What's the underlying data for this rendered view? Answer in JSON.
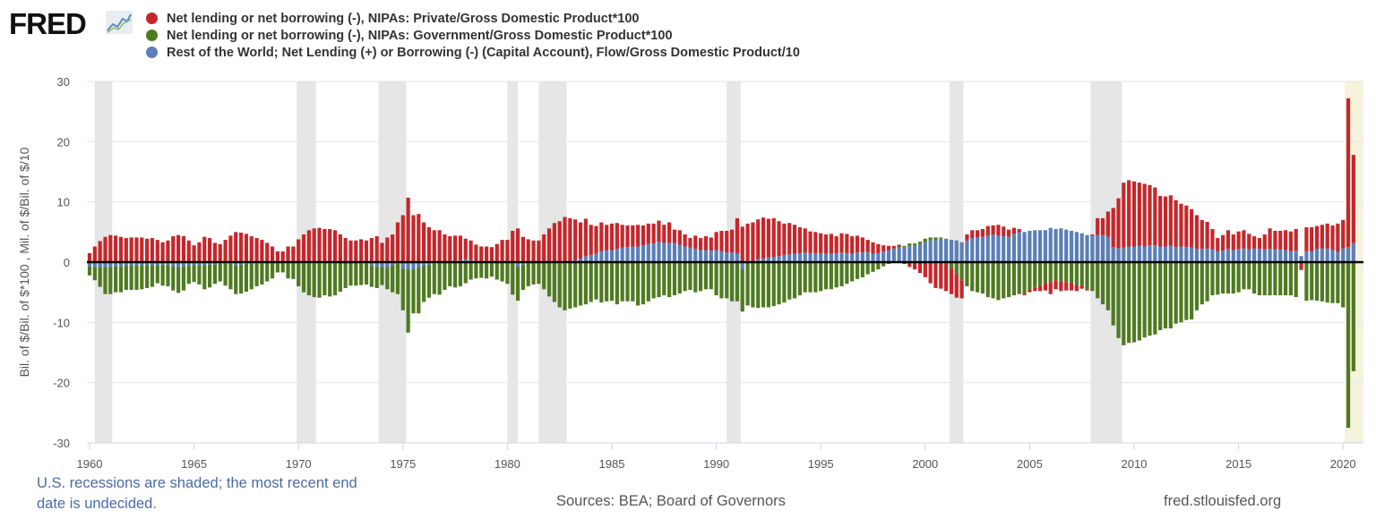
{
  "logo_text": "FRED",
  "footer": {
    "note": "U.S. recessions are shaded; the most recent end date is undecided.",
    "sources": "Sources: BEA; Board of Governors",
    "site": "fred.stlouisfed.org"
  },
  "chart_data": {
    "type": "bar",
    "stacked": true,
    "frequency": "quarterly",
    "x_start": "1960-Q1",
    "x_end": "2020-Q3",
    "ylabel": "Bil. of $/Bil. of $*100 , Mil. of $/Bil. of $/10",
    "ylim": [
      -30,
      30
    ],
    "yticks": [
      30,
      20,
      10,
      0,
      -10,
      -20,
      -30
    ],
    "xticks": [
      "1960",
      "1965",
      "1970",
      "1975",
      "1980",
      "1985",
      "1990",
      "1995",
      "2000",
      "2005",
      "2010",
      "2015",
      "2020"
    ],
    "xlim": [
      1960,
      2020.9
    ],
    "grid": true,
    "legend_position": "top",
    "recessions": [
      {
        "start": "1960-04",
        "end": "1961-02"
      },
      {
        "start": "1969-12",
        "end": "1970-11"
      },
      {
        "start": "1973-11",
        "end": "1975-03"
      },
      {
        "start": "1980-01",
        "end": "1980-07"
      },
      {
        "start": "1981-07",
        "end": "1982-11"
      },
      {
        "start": "1990-07",
        "end": "1991-03"
      },
      {
        "start": "2001-03",
        "end": "2001-11"
      },
      {
        "start": "2007-12",
        "end": "2009-06"
      },
      {
        "start": "2020-02",
        "end": null
      }
    ],
    "recession_color": "#e6e6e6",
    "undecided_recession_color": "#f5f3dc",
    "series": [
      {
        "name": "Net lending or net borrowing (-), NIPAs: Private/Gross Domestic Product*100",
        "color": "#c4272b",
        "values": [
          1.5,
          2.6,
          3.5,
          4.2,
          4.5,
          4.4,
          4.2,
          4.0,
          4.1,
          4.1,
          4.1,
          3.9,
          4.0,
          3.7,
          3.3,
          3.6,
          4.3,
          4.5,
          4.3,
          3.6,
          2.8,
          3.3,
          4.2,
          4.0,
          3.2,
          3.0,
          3.7,
          4.4,
          5.0,
          4.9,
          4.7,
          4.3,
          4.0,
          3.7,
          3.2,
          2.6,
          1.8,
          1.8,
          2.6,
          2.6,
          3.8,
          4.6,
          5.3,
          5.6,
          5.7,
          5.5,
          5.5,
          5.3,
          4.6,
          4.0,
          3.6,
          3.6,
          3.8,
          3.6,
          4.0,
          4.3,
          3.2,
          4.1,
          4.6,
          6.6,
          7.8,
          10.7,
          7.8,
          8.0,
          6.6,
          5.8,
          5.3,
          5.3,
          4.6,
          4.2,
          4.2,
          4.1,
          3.4,
          3.3,
          2.8,
          2.6,
          2.6,
          2.5,
          3.0,
          3.7,
          3.7,
          5.2,
          5.6,
          4.2,
          3.8,
          3.6,
          3.6,
          4.6,
          5.6,
          6.5,
          6.8,
          7.5,
          7.3,
          6.8,
          6.0,
          6.2,
          5.0,
          4.5,
          4.8,
          4.2,
          4.4,
          4.3,
          3.8,
          3.6,
          3.5,
          3.6,
          3.3,
          3.4,
          3.3,
          3.5,
          3.0,
          3.4,
          2.2,
          2.4,
          2.0,
          1.6,
          2.2,
          2.0,
          2.3,
          2.2,
          3.0,
          3.4,
          3.6,
          3.8,
          5.8,
          5.9,
          6.2,
          6.6,
          6.6,
          6.8,
          6.4,
          6.5,
          5.8,
          5.2,
          5.2,
          4.8,
          4.3,
          4.0,
          3.6,
          3.5,
          3.3,
          3.2,
          3.3,
          2.8,
          3.2,
          3.2,
          2.9,
          2.8,
          2.5,
          2.0,
          1.9,
          1.5,
          1.0,
          0.7,
          0.4,
          0.3,
          -0.3,
          -0.8,
          -1.2,
          -1.8,
          -2.5,
          -3.5,
          -4.3,
          -4.4,
          -4.5,
          -4.3,
          -3.9,
          -3.0,
          1.0,
          1.3,
          1.2,
          1.3,
          1.6,
          1.5,
          1.8,
          1.6,
          1.2,
          1.0,
          0.5,
          -0.2,
          -0.5,
          -0.6,
          -0.8,
          -1.2,
          -2.0,
          -1.5,
          -1.6,
          -1.4,
          -1.2,
          -1.0,
          -0.5,
          -0.3,
          0.2,
          2.8,
          2.8,
          4.2,
          6.5,
          8.3,
          10.8,
          11.0,
          10.8,
          10.5,
          10.4,
          10.0,
          9.6,
          8.4,
          8.3,
          8.4,
          7.8,
          7.1,
          6.9,
          6.4,
          5.6,
          4.8,
          4.4,
          3.4,
          2.2,
          2.6,
          3.1,
          2.6,
          2.9,
          3.0,
          2.6,
          2.0,
          1.8,
          2.5,
          3.4,
          3.1,
          3.1,
          3.3,
          3.3,
          3.6,
          -1.3,
          4.0,
          4.0,
          3.8,
          3.9,
          4.1,
          4.1,
          4.7,
          4.7,
          24.7,
          14.6
        ]
      },
      {
        "name": "Net lending or net borrowing (-), NIPAs: Government/Gross Domestic Product*100",
        "color": "#4f7a21",
        "values": [
          -1.5,
          -2.2,
          -3.3,
          -4.5,
          -4.5,
          -4.3,
          -4.3,
          -4.0,
          -4.0,
          -4.0,
          -4.0,
          -3.8,
          -3.5,
          -3.0,
          -3.5,
          -3.5,
          -4.0,
          -4.3,
          -4.0,
          -3.0,
          -2.8,
          -3.2,
          -4.0,
          -3.8,
          -3.2,
          -2.9,
          -3.6,
          -4.2,
          -4.8,
          -4.8,
          -4.6,
          -4.2,
          -3.7,
          -3.5,
          -3.0,
          -2.5,
          -1.5,
          -1.5,
          -2.5,
          -2.6,
          -3.8,
          -4.7,
          -5.2,
          -5.5,
          -5.6,
          -5.3,
          -5.5,
          -5.3,
          -4.8,
          -4.2,
          -3.8,
          -3.8,
          -3.6,
          -3.5,
          -3.5,
          -3.5,
          -3.0,
          -3.6,
          -4.5,
          -5.0,
          -7.0,
          -10.5,
          -7.3,
          -7.6,
          -6.0,
          -5.5,
          -5.0,
          -5.2,
          -4.5,
          -4.0,
          -4.2,
          -4.0,
          -3.5,
          -2.9,
          -2.7,
          -2.5,
          -2.5,
          -2.3,
          -2.8,
          -3.2,
          -3.5,
          -5.2,
          -5.6,
          -4.2,
          -3.8,
          -3.6,
          -3.6,
          -4.4,
          -5.5,
          -6.4,
          -7.2,
          -7.8,
          -7.7,
          -7.5,
          -7.2,
          -7.0,
          -6.6,
          -6.2,
          -6.7,
          -6.5,
          -6.4,
          -7.0,
          -6.5,
          -6.5,
          -6.5,
          -7.2,
          -7.0,
          -6.5,
          -6.0,
          -5.8,
          -5.5,
          -5.8,
          -5.5,
          -5.2,
          -4.8,
          -4.6,
          -5.0,
          -4.8,
          -4.5,
          -4.5,
          -5.5,
          -6.0,
          -6.0,
          -6.5,
          -6.5,
          -7.0,
          -7.2,
          -7.5,
          -7.6,
          -7.5,
          -7.5,
          -7.3,
          -7.0,
          -6.7,
          -6.2,
          -6.0,
          -5.5,
          -5.0,
          -5.0,
          -5.0,
          -4.8,
          -4.5,
          -4.5,
          -4.2,
          -4.0,
          -3.6,
          -3.2,
          -2.8,
          -2.5,
          -2.0,
          -1.6,
          -1.2,
          -0.7,
          -0.3,
          -0.1,
          0.2,
          0.2,
          0.4,
          0.3,
          0.4,
          0.6,
          0.5,
          0.4,
          0.2,
          -0.3,
          -1.0,
          -2.0,
          -3.0,
          -4.0,
          -4.8,
          -5.0,
          -5.2,
          -5.8,
          -6.0,
          -6.3,
          -6.0,
          -5.8,
          -5.5,
          -5.3,
          -5.3,
          -4.5,
          -4.2,
          -4.0,
          -3.5,
          -3.3,
          -3.0,
          -3.2,
          -3.3,
          -3.5,
          -3.8,
          -3.9,
          -4.4,
          -4.8,
          -6.0,
          -7.0,
          -8.0,
          -10.5,
          -12.6,
          -13.8,
          -13.4,
          -13.3,
          -13.0,
          -12.5,
          -12.2,
          -12.0,
          -11.3,
          -11.0,
          -11.0,
          -10.2,
          -10.0,
          -9.6,
          -9.5,
          -8.0,
          -7.0,
          -6.5,
          -5.5,
          -5.4,
          -5.2,
          -5.2,
          -5.2,
          -5.0,
          -4.5,
          -4.5,
          -5.2,
          -5.5,
          -5.5,
          -5.5,
          -5.5,
          -5.5,
          -5.5,
          -5.5,
          -5.8,
          0,
          -6.4,
          -6.3,
          -6.4,
          -6.5,
          -6.7,
          -6.8,
          -6.8,
          -7.5,
          -27.5,
          -18.1
        ]
      },
      {
        "name": "Rest of the World; Net Lending (+) or Borrowing (-) (Capital Account), Flow/Gross Domestic Product/10",
        "color": "#5b7fb6",
        "values": [
          -0.7,
          -0.8,
          -0.8,
          -0.8,
          -0.8,
          -0.7,
          -0.7,
          -0.6,
          -0.6,
          -0.6,
          -0.5,
          -0.5,
          -0.6,
          -0.5,
          -0.4,
          -0.5,
          -0.7,
          -0.8,
          -0.7,
          -0.6,
          -0.5,
          -0.5,
          -0.5,
          -0.4,
          -0.4,
          -0.3,
          -0.3,
          -0.3,
          -0.5,
          -0.4,
          -0.3,
          -0.3,
          -0.3,
          -0.2,
          -0.2,
          -0.2,
          -0.2,
          -0.2,
          -0.2,
          -0.2,
          -0.2,
          -0.3,
          -0.3,
          -0.3,
          -0.3,
          -0.2,
          -0.2,
          -0.2,
          -0.1,
          -0.1,
          -0.1,
          -0.1,
          -0.2,
          -0.2,
          -0.6,
          -0.8,
          -0.8,
          -0.9,
          -0.5,
          -0.3,
          -1.0,
          -1.2,
          -1.2,
          -0.9,
          -0.6,
          -0.4,
          -0.3,
          -0.2,
          -0.1,
          0.1,
          0.2,
          0.3,
          0.5,
          0.3,
          0.1,
          -0.1,
          -0.2,
          -0.1,
          -0.1,
          0.0,
          -0.1,
          -0.2,
          -0.8,
          -0.4,
          -0.2,
          -0.1,
          0.0,
          -0.1,
          -0.2,
          -0.2,
          -0.3,
          -0.2,
          0.0,
          0.3,
          0.6,
          1.0,
          1.2,
          1.5,
          1.8,
          2.0,
          2.0,
          2.2,
          2.4,
          2.5,
          2.6,
          2.6,
          2.8,
          3.0,
          3.1,
          3.4,
          3.2,
          3.2,
          3.2,
          2.9,
          2.6,
          2.4,
          2.2,
          2.0,
          2.0,
          1.9,
          2.0,
          1.8,
          1.6,
          1.6,
          1.5,
          -1.2,
          0.2,
          0.0,
          0.5,
          0.6,
          0.8,
          0.8,
          1.0,
          1.2,
          1.3,
          1.4,
          1.5,
          1.6,
          1.5,
          1.5,
          1.5,
          1.4,
          1.4,
          1.5,
          1.6,
          1.5,
          1.4,
          1.6,
          1.6,
          1.7,
          1.4,
          1.5,
          1.8,
          2.0,
          2.3,
          2.4,
          2.5,
          2.7,
          2.8,
          3.0,
          3.3,
          3.6,
          3.7,
          3.9,
          3.9,
          3.7,
          3.6,
          3.3,
          3.6,
          4.0,
          4.1,
          4.2,
          4.4,
          4.6,
          4.4,
          4.3,
          4.2,
          4.7,
          5.0,
          5.0,
          5.2,
          5.3,
          5.3,
          5.3,
          5.7,
          5.5,
          5.6,
          5.4,
          5.2,
          5.0,
          4.8,
          4.5,
          4.4,
          4.5,
          4.5,
          4.2,
          2.5,
          2.3,
          2.4,
          2.6,
          2.6,
          2.7,
          2.6,
          2.8,
          2.8,
          2.6,
          2.6,
          2.7,
          2.5,
          2.6,
          2.5,
          2.4,
          2.2,
          2.2,
          2.3,
          2.1,
          1.8,
          1.9,
          2.2,
          2.0,
          2.2,
          2.3,
          2.1,
          2.3,
          2.2,
          2.1,
          2.2,
          2.1,
          2.1,
          2.0,
          1.8,
          1.9,
          1.0,
          1.8,
          1.8,
          2.2,
          2.3,
          2.3,
          2.0,
          1.7,
          2.3,
          2.5,
          3.2
        ]
      }
    ]
  }
}
